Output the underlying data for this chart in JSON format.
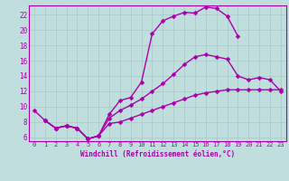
{
  "xlabel": "Windchill (Refroidissement éolien,°C)",
  "bg_color": "#c0dede",
  "grid_color": "#a8c8c8",
  "line_color": "#aa00aa",
  "xlim": [
    -0.5,
    23.5
  ],
  "ylim": [
    5.5,
    23.2
  ],
  "xticks": [
    0,
    1,
    2,
    3,
    4,
    5,
    6,
    7,
    8,
    9,
    10,
    11,
    12,
    13,
    14,
    15,
    16,
    17,
    18,
    19,
    20,
    21,
    22,
    23
  ],
  "yticks": [
    6,
    8,
    10,
    12,
    14,
    16,
    18,
    20,
    22
  ],
  "line1": {
    "x": [
      0,
      1,
      2,
      3,
      4,
      5,
      6,
      7,
      8,
      9,
      10,
      11,
      12,
      13,
      14,
      15,
      16,
      17,
      18,
      19
    ],
    "y": [
      9.5,
      8.2,
      7.2,
      7.5,
      7.2,
      5.8,
      6.2,
      9.0,
      10.8,
      11.2,
      13.2,
      19.5,
      21.2,
      21.8,
      22.3,
      22.2,
      23.0,
      22.8,
      21.8,
      19.2
    ]
  },
  "line2": {
    "x": [
      1,
      2,
      3,
      4,
      5,
      6,
      7,
      8,
      9,
      10,
      11,
      12,
      13,
      14,
      15,
      16,
      17,
      18,
      19,
      20,
      21,
      22,
      23
    ],
    "y": [
      8.2,
      7.2,
      7.5,
      7.2,
      5.8,
      6.2,
      8.5,
      9.5,
      10.2,
      11.0,
      12.0,
      13.0,
      14.2,
      15.5,
      16.5,
      16.8,
      16.5,
      16.2,
      14.0,
      13.5,
      13.8,
      13.5,
      12.0
    ]
  },
  "line3": {
    "x": [
      1,
      2,
      3,
      4,
      5,
      6,
      7,
      8,
      9,
      10,
      11,
      12,
      13,
      14,
      15,
      16,
      17,
      18,
      19,
      20,
      21,
      22,
      23
    ],
    "y": [
      8.2,
      7.2,
      7.5,
      7.2,
      5.8,
      6.2,
      7.8,
      8.0,
      8.5,
      9.0,
      9.5,
      10.0,
      10.5,
      11.0,
      11.5,
      11.8,
      12.0,
      12.2,
      12.2,
      12.2,
      12.2,
      12.2,
      12.2
    ]
  },
  "marker": "D",
  "markersize": 2.5,
  "linewidth": 1.0,
  "tick_fontsize": 5.0,
  "xlabel_fontsize": 5.5
}
